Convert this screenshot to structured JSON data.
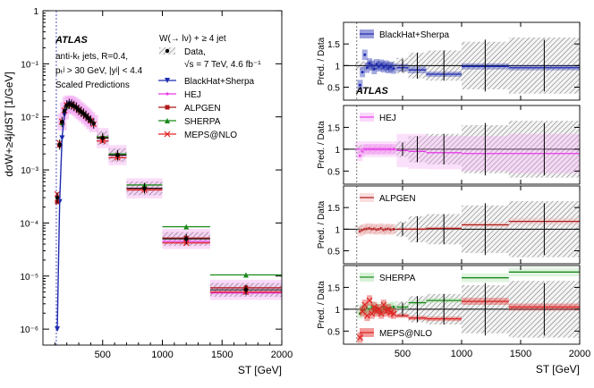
{
  "chart_data": [
    {
      "type": "scatter",
      "panel": "main",
      "title": "W(→ lν) + ≥ 4 jet",
      "experiment": "ATLAS",
      "annotations": [
        "anti-kₜ jets, R=0.4,",
        "pₜʲ > 30 GeV, |yʲ| < 4.4",
        "Scaled Predictions"
      ],
      "data_label": "Data,",
      "lumi_label": "√s = 7 TeV, 4.6 fb⁻¹",
      "ylabel": "dσW+≥4j/dST [1/GeV]",
      "xlabel": "ST [GeV]",
      "xlim": [
        0,
        2000
      ],
      "ylim": [
        5e-07,
        1
      ],
      "yscale": "log",
      "xticks": [
        "500",
        "1000",
        "1500",
        "2000"
      ],
      "yticks": [
        "10⁻⁶",
        "10⁻⁵",
        "10⁻⁴",
        "10⁻³",
        "10⁻²",
        "10⁻¹",
        "1"
      ],
      "bins_coarse": [
        [
          450,
          550
        ],
        [
          550,
          700
        ],
        [
          700,
          1000
        ],
        [
          1000,
          1400
        ],
        [
          1400,
          2000
        ]
      ],
      "data": {
        "x": [
          120,
          140,
          160,
          180,
          200,
          220,
          240,
          260,
          280,
          300,
          320,
          340,
          360,
          380,
          400,
          425,
          500,
          625,
          850,
          1200,
          1700
        ],
        "y": [
          0.0003,
          0.003,
          0.008,
          0.013,
          0.0165,
          0.0175,
          0.017,
          0.016,
          0.015,
          0.0135,
          0.0125,
          0.0115,
          0.0105,
          0.0095,
          0.0085,
          0.0075,
          0.004,
          0.0019,
          0.00045,
          5e-05,
          5.5e-06
        ]
      },
      "series": [
        {
          "name": "BlackHat+Sherpa",
          "color": "#1f2bb0",
          "marker": "triangle-down",
          "x": [
            120,
            140,
            160,
            180,
            200,
            220,
            240
          ],
          "values": [
            1e-06,
            0.00025,
            0.004,
            0.011,
            0.016,
            0.0175,
            0.017
          ]
        },
        {
          "name": "HEJ",
          "color": "#e63ce6",
          "marker": "dot",
          "x": [
            160,
            200,
            240,
            280,
            320,
            360,
            400,
            500,
            625,
            850,
            1200,
            1700
          ],
          "values": [
            0.008,
            0.0165,
            0.017,
            0.015,
            0.0125,
            0.0105,
            0.0085,
            0.004,
            0.0019,
            0.00045,
            4.5e-05,
            4.8e-06
          ]
        },
        {
          "name": "ALPGEN",
          "color": "#b01818",
          "marker": "square",
          "x": [
            120,
            140,
            160,
            200,
            240,
            300,
            400,
            500,
            625,
            850,
            1200,
            1700
          ],
          "values": [
            0.00025,
            0.0029,
            0.0078,
            0.0164,
            0.017,
            0.0134,
            0.0084,
            0.004,
            0.0019,
            0.00045,
            5.2e-05,
            6e-06
          ]
        },
        {
          "name": "SHERPA",
          "color": "#1a8a1a",
          "marker": "triangle-up",
          "x": [
            160,
            200,
            240,
            300,
            400,
            500,
            625,
            850,
            1200,
            1700
          ],
          "values": [
            0.0078,
            0.016,
            0.017,
            0.0136,
            0.0088,
            0.0042,
            0.002,
            0.00052,
            8.5e-05,
            1.05e-05
          ]
        },
        {
          "name": "MEPS@NLO",
          "color": "#e02020",
          "marker": "cross",
          "x": [
            120,
            140,
            160,
            180,
            200,
            220,
            240,
            260,
            280,
            300,
            320,
            340,
            360,
            380,
            400,
            425,
            500,
            625,
            850,
            1200,
            1700
          ],
          "values": [
            0.00035,
            0.0032,
            0.0082,
            0.0132,
            0.0166,
            0.0172,
            0.0168,
            0.0158,
            0.0148,
            0.0134,
            0.0123,
            0.0113,
            0.0103,
            0.0094,
            0.0085,
            0.0073,
            0.0035,
            0.0017,
            0.00042,
            4.2e-05,
            5e-06
          ]
        }
      ],
      "legend": [
        "Data,",
        "√s = 7 TeV, 4.6 fb⁻¹",
        "BlackHat+Sherpa",
        "HEJ",
        "ALPGEN",
        "SHERPA",
        "MEPS@NLO"
      ]
    },
    {
      "type": "line",
      "panel": "ratio",
      "ylabel": "Pred. / Data",
      "xlabel": "ST [GeV]",
      "xlim": [
        0,
        2000
      ],
      "ylim": [
        0.2,
        2.0
      ],
      "xticks": [
        "500",
        "1000",
        "1500",
        "2000"
      ],
      "yticks": [
        "0.5",
        "1",
        "1.5"
      ],
      "data_band_bins": [
        [
          100,
          450,
          0.1
        ],
        [
          450,
          550,
          0.18
        ],
        [
          550,
          700,
          0.3
        ],
        [
          700,
          1000,
          0.35
        ],
        [
          1000,
          1400,
          0.55
        ],
        [
          1400,
          2000,
          0.65
        ]
      ],
      "data_errors": [
        [
          500,
          0.15
        ],
        [
          625,
          0.3
        ],
        [
          850,
          0.35
        ],
        [
          1200,
          0.6
        ],
        [
          1700,
          0.6
        ]
      ],
      "experiment": "ATLAS",
      "pads": [
        {
          "labels": [
            "BlackHat+Sherpa"
          ],
          "series": [
            {
              "name": "BlackHat+Sherpa",
              "color": "#1f2bb0",
              "band_color": "#1f2bb0",
              "style": "dots",
              "points_x": [
                140,
                160,
                180,
                200,
                220,
                240,
                260,
                280,
                300,
                320,
                340,
                360,
                380,
                400,
                425
              ],
              "points_y": [
                0.55,
                0.85,
                1.25,
                0.95,
                1.05,
                1.0,
                0.92,
                1.03,
                0.98,
                1.02,
                0.96,
                1.0,
                0.94,
                0.97,
                0.93
              ],
              "bins": [
                [
                  450,
                  550,
                  0.95,
                  0.09
                ],
                [
                  550,
                  700,
                  0.9,
                  0.08
                ],
                [
                  700,
                  1000,
                  0.8,
                  0.06
                ],
                [
                  1000,
                  1400,
                  0.98,
                  0.07
                ],
                [
                  1400,
                  2000,
                  0.95,
                  0.06
                ]
              ]
            }
          ]
        },
        {
          "labels": [
            "HEJ"
          ],
          "series": [
            {
              "name": "HEJ",
              "color": "#e63ce6",
              "band_color": "#f4a6f4",
              "style": "dots",
              "points_x": [
                140,
                160,
                180,
                200,
                220,
                240,
                260,
                280,
                300,
                320,
                340,
                360,
                380,
                400,
                425
              ],
              "points_y": [
                0.85,
                0.95,
                1.0,
                1.0,
                1.0,
                1.0,
                1.0,
                1.0,
                1.0,
                1.0,
                1.0,
                1.0,
                1.0,
                1.0,
                1.0
              ],
              "bins": [
                [
                  100,
                  450,
                  1.0,
                  0.18
                ],
                [
                  450,
                  550,
                  0.97,
                  0.38
                ],
                [
                  550,
                  700,
                  0.95,
                  0.4
                ],
                [
                  700,
                  1000,
                  0.92,
                  0.38
                ],
                [
                  1000,
                  1400,
                  0.9,
                  0.4
                ],
                [
                  1400,
                  2000,
                  0.9,
                  0.45
                ]
              ]
            }
          ]
        },
        {
          "labels": [
            "ALPGEN"
          ],
          "series": [
            {
              "name": "ALPGEN",
              "color": "#b01818",
              "band_color": "#f2b3b3",
              "style": "dots",
              "points_x": [
                140,
                160,
                180,
                200,
                220,
                240,
                260,
                280,
                300,
                320,
                340,
                360,
                380,
                400,
                425
              ],
              "points_y": [
                0.95,
                0.98,
                1.0,
                1.01,
                1.02,
                1.0,
                1.01,
                0.99,
                1.0,
                1.02,
                0.98,
                1.0,
                1.01,
                0.99,
                1.0
              ],
              "bins": [
                [
                  450,
                  550,
                  1.0,
                  0.04
                ],
                [
                  550,
                  700,
                  1.0,
                  0.04
                ],
                [
                  700,
                  1000,
                  1.02,
                  0.04
                ],
                [
                  1000,
                  1400,
                  1.1,
                  0.06
                ],
                [
                  1400,
                  2000,
                  1.18,
                  0.08
                ]
              ]
            }
          ]
        },
        {
          "labels": [
            "SHERPA",
            "MEPS@NLO"
          ],
          "series": [
            {
              "name": "SHERPA",
              "color": "#1a8a1a",
              "band_color": "#a8e0a8",
              "style": "dots",
              "points_x": [
                140,
                160,
                180,
                200,
                220,
                240,
                260,
                280,
                300,
                320,
                340,
                360,
                380,
                400,
                425
              ],
              "points_y": [
                0.9,
                1.0,
                0.98,
                1.02,
                1.0,
                1.05,
                0.97,
                1.03,
                1.0,
                0.95,
                1.05,
                1.0,
                1.02,
                1.04,
                1.05
              ],
              "bins": [
                [
                  450,
                  550,
                  1.05,
                  0.06
                ],
                [
                  550,
                  700,
                  1.15,
                  0.06
                ],
                [
                  700,
                  1000,
                  1.2,
                  0.06
                ],
                [
                  1000,
                  1400,
                  1.72,
                  0.1
                ],
                [
                  1400,
                  2000,
                  1.85,
                  0.1
                ]
              ]
            },
            {
              "name": "MEPS@NLO",
              "color": "#e02020",
              "band_color": "#e02020",
              "style": "crosses",
              "points_x": [
                140,
                160,
                180,
                200,
                220,
                240,
                260,
                280,
                300,
                320,
                340,
                360,
                380,
                400,
                425
              ],
              "points_y": [
                0.35,
                0.95,
                1.1,
                0.85,
                1.2,
                0.9,
                1.05,
                0.95,
                1.0,
                0.9,
                1.1,
                0.95,
                1.0,
                0.92,
                0.9
              ],
              "bins": [
                [
                  450,
                  550,
                  0.85,
                  0.05
                ],
                [
                  550,
                  700,
                  0.8,
                  0.05
                ],
                [
                  700,
                  1000,
                  0.78,
                  0.05
                ],
                [
                  1000,
                  1400,
                  1.18,
                  0.08
                ],
                [
                  1400,
                  2000,
                  1.05,
                  0.08
                ]
              ]
            }
          ]
        }
      ]
    }
  ]
}
